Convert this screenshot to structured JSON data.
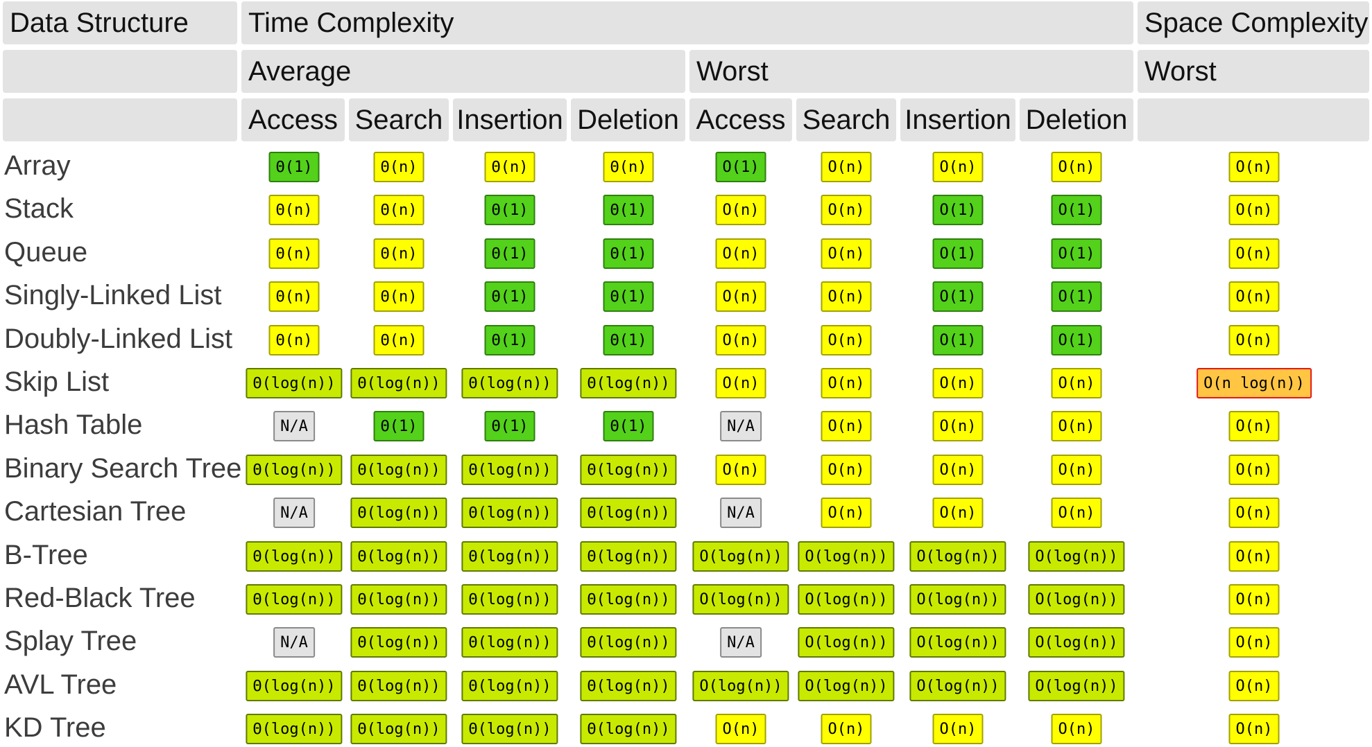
{
  "headers": {
    "data_structure": "Data Structure",
    "time_complexity": "Time Complexity",
    "space_complexity": "Space Complexity",
    "average": "Average",
    "worst_time": "Worst",
    "worst_space": "Worst",
    "columns": [
      "Access",
      "Search",
      "Insertion",
      "Deletion",
      "Access",
      "Search",
      "Insertion",
      "Deletion"
    ]
  },
  "colors": {
    "green": "#53d11b",
    "yellowgreen": "#c8ea00",
    "yellow": "#ffff00",
    "orange": "#ffc543",
    "gray": "#e3e3e3",
    "header_bg": "#e3e3e3"
  },
  "rows": [
    {
      "name": "Array",
      "cells": [
        {
          "text": "Θ(1)",
          "color": "green"
        },
        {
          "text": "Θ(n)",
          "color": "yellow"
        },
        {
          "text": "Θ(n)",
          "color": "yellow"
        },
        {
          "text": "Θ(n)",
          "color": "yellow"
        },
        {
          "text": "O(1)",
          "color": "green"
        },
        {
          "text": "O(n)",
          "color": "yellow"
        },
        {
          "text": "O(n)",
          "color": "yellow"
        },
        {
          "text": "O(n)",
          "color": "yellow"
        },
        {
          "text": "O(n)",
          "color": "yellow"
        }
      ]
    },
    {
      "name": "Stack",
      "cells": [
        {
          "text": "Θ(n)",
          "color": "yellow"
        },
        {
          "text": "Θ(n)",
          "color": "yellow"
        },
        {
          "text": "Θ(1)",
          "color": "green"
        },
        {
          "text": "Θ(1)",
          "color": "green"
        },
        {
          "text": "O(n)",
          "color": "yellow"
        },
        {
          "text": "O(n)",
          "color": "yellow"
        },
        {
          "text": "O(1)",
          "color": "green"
        },
        {
          "text": "O(1)",
          "color": "green"
        },
        {
          "text": "O(n)",
          "color": "yellow"
        }
      ]
    },
    {
      "name": "Queue",
      "cells": [
        {
          "text": "Θ(n)",
          "color": "yellow"
        },
        {
          "text": "Θ(n)",
          "color": "yellow"
        },
        {
          "text": "Θ(1)",
          "color": "green"
        },
        {
          "text": "Θ(1)",
          "color": "green"
        },
        {
          "text": "O(n)",
          "color": "yellow"
        },
        {
          "text": "O(n)",
          "color": "yellow"
        },
        {
          "text": "O(1)",
          "color": "green"
        },
        {
          "text": "O(1)",
          "color": "green"
        },
        {
          "text": "O(n)",
          "color": "yellow"
        }
      ]
    },
    {
      "name": "Singly-Linked List",
      "cells": [
        {
          "text": "Θ(n)",
          "color": "yellow"
        },
        {
          "text": "Θ(n)",
          "color": "yellow"
        },
        {
          "text": "Θ(1)",
          "color": "green"
        },
        {
          "text": "Θ(1)",
          "color": "green"
        },
        {
          "text": "O(n)",
          "color": "yellow"
        },
        {
          "text": "O(n)",
          "color": "yellow"
        },
        {
          "text": "O(1)",
          "color": "green"
        },
        {
          "text": "O(1)",
          "color": "green"
        },
        {
          "text": "O(n)",
          "color": "yellow"
        }
      ]
    },
    {
      "name": "Doubly-Linked List",
      "cells": [
        {
          "text": "Θ(n)",
          "color": "yellow"
        },
        {
          "text": "Θ(n)",
          "color": "yellow"
        },
        {
          "text": "Θ(1)",
          "color": "green"
        },
        {
          "text": "Θ(1)",
          "color": "green"
        },
        {
          "text": "O(n)",
          "color": "yellow"
        },
        {
          "text": "O(n)",
          "color": "yellow"
        },
        {
          "text": "O(1)",
          "color": "green"
        },
        {
          "text": "O(1)",
          "color": "green"
        },
        {
          "text": "O(n)",
          "color": "yellow"
        }
      ]
    },
    {
      "name": "Skip List",
      "cells": [
        {
          "text": "Θ(log(n))",
          "color": "yellowgreen"
        },
        {
          "text": "Θ(log(n))",
          "color": "yellowgreen"
        },
        {
          "text": "Θ(log(n))",
          "color": "yellowgreen"
        },
        {
          "text": "Θ(log(n))",
          "color": "yellowgreen"
        },
        {
          "text": "O(n)",
          "color": "yellow"
        },
        {
          "text": "O(n)",
          "color": "yellow"
        },
        {
          "text": "O(n)",
          "color": "yellow"
        },
        {
          "text": "O(n)",
          "color": "yellow"
        },
        {
          "text": "O(n log(n))",
          "color": "orange"
        }
      ]
    },
    {
      "name": "Hash Table",
      "cells": [
        {
          "text": "N/A",
          "color": "gray"
        },
        {
          "text": "Θ(1)",
          "color": "green"
        },
        {
          "text": "Θ(1)",
          "color": "green"
        },
        {
          "text": "Θ(1)",
          "color": "green"
        },
        {
          "text": "N/A",
          "color": "gray"
        },
        {
          "text": "O(n)",
          "color": "yellow"
        },
        {
          "text": "O(n)",
          "color": "yellow"
        },
        {
          "text": "O(n)",
          "color": "yellow"
        },
        {
          "text": "O(n)",
          "color": "yellow"
        }
      ]
    },
    {
      "name": "Binary Search Tree",
      "cells": [
        {
          "text": "Θ(log(n))",
          "color": "yellowgreen"
        },
        {
          "text": "Θ(log(n))",
          "color": "yellowgreen"
        },
        {
          "text": "Θ(log(n))",
          "color": "yellowgreen"
        },
        {
          "text": "Θ(log(n))",
          "color": "yellowgreen"
        },
        {
          "text": "O(n)",
          "color": "yellow"
        },
        {
          "text": "O(n)",
          "color": "yellow"
        },
        {
          "text": "O(n)",
          "color": "yellow"
        },
        {
          "text": "O(n)",
          "color": "yellow"
        },
        {
          "text": "O(n)",
          "color": "yellow"
        }
      ]
    },
    {
      "name": "Cartesian Tree",
      "cells": [
        {
          "text": "N/A",
          "color": "gray"
        },
        {
          "text": "Θ(log(n))",
          "color": "yellowgreen"
        },
        {
          "text": "Θ(log(n))",
          "color": "yellowgreen"
        },
        {
          "text": "Θ(log(n))",
          "color": "yellowgreen"
        },
        {
          "text": "N/A",
          "color": "gray"
        },
        {
          "text": "O(n)",
          "color": "yellow"
        },
        {
          "text": "O(n)",
          "color": "yellow"
        },
        {
          "text": "O(n)",
          "color": "yellow"
        },
        {
          "text": "O(n)",
          "color": "yellow"
        }
      ]
    },
    {
      "name": "B-Tree",
      "cells": [
        {
          "text": "Θ(log(n))",
          "color": "yellowgreen"
        },
        {
          "text": "Θ(log(n))",
          "color": "yellowgreen"
        },
        {
          "text": "Θ(log(n))",
          "color": "yellowgreen"
        },
        {
          "text": "Θ(log(n))",
          "color": "yellowgreen"
        },
        {
          "text": "O(log(n))",
          "color": "yellowgreen"
        },
        {
          "text": "O(log(n))",
          "color": "yellowgreen"
        },
        {
          "text": "O(log(n))",
          "color": "yellowgreen"
        },
        {
          "text": "O(log(n))",
          "color": "yellowgreen"
        },
        {
          "text": "O(n)",
          "color": "yellow"
        }
      ]
    },
    {
      "name": "Red-Black Tree",
      "cells": [
        {
          "text": "Θ(log(n))",
          "color": "yellowgreen"
        },
        {
          "text": "Θ(log(n))",
          "color": "yellowgreen"
        },
        {
          "text": "Θ(log(n))",
          "color": "yellowgreen"
        },
        {
          "text": "Θ(log(n))",
          "color": "yellowgreen"
        },
        {
          "text": "O(log(n))",
          "color": "yellowgreen"
        },
        {
          "text": "O(log(n))",
          "color": "yellowgreen"
        },
        {
          "text": "O(log(n))",
          "color": "yellowgreen"
        },
        {
          "text": "O(log(n))",
          "color": "yellowgreen"
        },
        {
          "text": "O(n)",
          "color": "yellow"
        }
      ]
    },
    {
      "name": "Splay Tree",
      "cells": [
        {
          "text": "N/A",
          "color": "gray"
        },
        {
          "text": "Θ(log(n))",
          "color": "yellowgreen"
        },
        {
          "text": "Θ(log(n))",
          "color": "yellowgreen"
        },
        {
          "text": "Θ(log(n))",
          "color": "yellowgreen"
        },
        {
          "text": "N/A",
          "color": "gray"
        },
        {
          "text": "O(log(n))",
          "color": "yellowgreen"
        },
        {
          "text": "O(log(n))",
          "color": "yellowgreen"
        },
        {
          "text": "O(log(n))",
          "color": "yellowgreen"
        },
        {
          "text": "O(n)",
          "color": "yellow"
        }
      ]
    },
    {
      "name": "AVL Tree",
      "cells": [
        {
          "text": "Θ(log(n))",
          "color": "yellowgreen"
        },
        {
          "text": "Θ(log(n))",
          "color": "yellowgreen"
        },
        {
          "text": "Θ(log(n))",
          "color": "yellowgreen"
        },
        {
          "text": "Θ(log(n))",
          "color": "yellowgreen"
        },
        {
          "text": "O(log(n))",
          "color": "yellowgreen"
        },
        {
          "text": "O(log(n))",
          "color": "yellowgreen"
        },
        {
          "text": "O(log(n))",
          "color": "yellowgreen"
        },
        {
          "text": "O(log(n))",
          "color": "yellowgreen"
        },
        {
          "text": "O(n)",
          "color": "yellow"
        }
      ]
    },
    {
      "name": "KD Tree",
      "cells": [
        {
          "text": "Θ(log(n))",
          "color": "yellowgreen"
        },
        {
          "text": "Θ(log(n))",
          "color": "yellowgreen"
        },
        {
          "text": "Θ(log(n))",
          "color": "yellowgreen"
        },
        {
          "text": "Θ(log(n))",
          "color": "yellowgreen"
        },
        {
          "text": "O(n)",
          "color": "yellow"
        },
        {
          "text": "O(n)",
          "color": "yellow"
        },
        {
          "text": "O(n)",
          "color": "yellow"
        },
        {
          "text": "O(n)",
          "color": "yellow"
        },
        {
          "text": "O(n)",
          "color": "yellow"
        }
      ]
    }
  ]
}
